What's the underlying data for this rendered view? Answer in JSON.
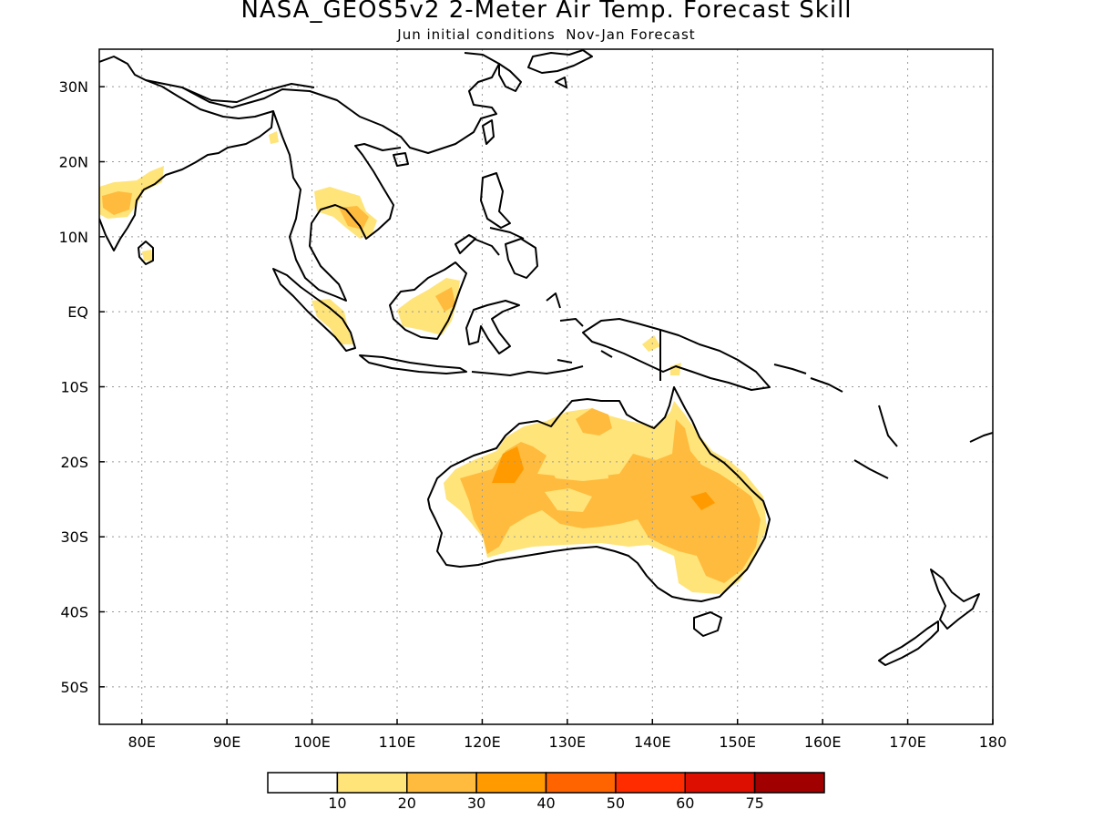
{
  "title": "NASA_GEOS5v2 2-Meter Air Temp. Forecast Skill",
  "subtitle": "Jun initial conditions  Nov-Jan Forecast",
  "map": {
    "lon_range": [
      75,
      180
    ],
    "lat_range": [
      -55,
      35
    ],
    "grid": "dotted",
    "lat_ticks": [
      {
        "value": 30,
        "label": "30N"
      },
      {
        "value": 20,
        "label": "20N"
      },
      {
        "value": 10,
        "label": "10N"
      },
      {
        "value": 0,
        "label": "EQ"
      },
      {
        "value": -10,
        "label": "10S"
      },
      {
        "value": -20,
        "label": "20S"
      },
      {
        "value": -30,
        "label": "30S"
      },
      {
        "value": -40,
        "label": "40S"
      },
      {
        "value": -50,
        "label": "50S"
      }
    ],
    "lon_ticks": [
      {
        "value": 80,
        "label": "80E"
      },
      {
        "value": 90,
        "label": "90E"
      },
      {
        "value": 100,
        "label": "100E"
      },
      {
        "value": 110,
        "label": "110E"
      },
      {
        "value": 120,
        "label": "120E"
      },
      {
        "value": 130,
        "label": "130E"
      },
      {
        "value": 140,
        "label": "140E"
      },
      {
        "value": 150,
        "label": "150E"
      },
      {
        "value": 160,
        "label": "160E"
      },
      {
        "value": 170,
        "label": "170E"
      },
      {
        "value": 180,
        "label": "180"
      }
    ]
  },
  "colorbar": {
    "colors": [
      "#ffffff",
      "#ffe47a",
      "#ffbb3d",
      "#ff9a00",
      "#ff6400",
      "#ff2c00",
      "#dc0f00",
      "#a10000"
    ],
    "labels": [
      "10",
      "20",
      "30",
      "40",
      "50",
      "60",
      "75"
    ]
  },
  "chart_data": {
    "type": "heatmap",
    "title": "NASA_GEOS5v2 2-Meter Air Temp. Forecast Skill",
    "subtitle": "Jun initial conditions  Nov-Jan Forecast",
    "xlabel": "",
    "ylabel": "",
    "xlim": [
      75,
      180
    ],
    "ylim": [
      -55,
      35
    ],
    "levels": [
      10,
      20,
      30,
      40,
      50,
      60,
      75
    ],
    "regions": [
      {
        "name": "Australia (north, west and east interior)",
        "level_range": [
          20,
          30
        ]
      },
      {
        "name": "Australia (Kimberley / Northern Territory pockets)",
        "level_range": [
          10,
          20
        ]
      },
      {
        "name": "Western India",
        "level_range": [
          10,
          30
        ]
      },
      {
        "name": "Indochina (Thailand, Cambodia)",
        "level_range": [
          10,
          30
        ]
      },
      {
        "name": "Borneo",
        "level_range": [
          10,
          20
        ]
      },
      {
        "name": "Sumatra",
        "level_range": [
          10,
          20
        ]
      },
      {
        "name": "New Guinea",
        "level_range": [
          10,
          20
        ]
      }
    ]
  }
}
